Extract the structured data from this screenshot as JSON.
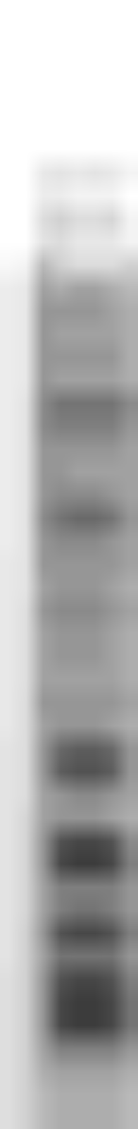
{
  "chart_data": {
    "type": "heatmap",
    "tick_labels": false,
    "zlim": [
      0,
      100
    ],
    "cells": [
      [
        0,
        0,
        0,
        0,
        0,
        0,
        0,
        0
      ],
      [
        0,
        0,
        0,
        0,
        0,
        0,
        0,
        0
      ],
      [
        0,
        0,
        0,
        0,
        0,
        0,
        0,
        0
      ],
      [
        0,
        0,
        0,
        0,
        0,
        0,
        0,
        0
      ],
      [
        0,
        0,
        0,
        0,
        0,
        0,
        0,
        0
      ],
      [
        0,
        0,
        0,
        0,
        0,
        0,
        0,
        0
      ],
      [
        0,
        0,
        0,
        0,
        0,
        0,
        0,
        0
      ],
      [
        0,
        0,
        10,
        12,
        10,
        12,
        10,
        5
      ],
      [
        0,
        0,
        8,
        8,
        5,
        5,
        5,
        0
      ],
      [
        0,
        0,
        15,
        20,
        15,
        15,
        18,
        5
      ],
      [
        0,
        0,
        12,
        15,
        10,
        10,
        10,
        5
      ],
      [
        3,
        5,
        30,
        20,
        15,
        15,
        15,
        20
      ],
      [
        8,
        10,
        40,
        35,
        40,
        40,
        35,
        30
      ],
      [
        8,
        10,
        45,
        45,
        45,
        45,
        40,
        35
      ],
      [
        8,
        10,
        45,
        40,
        40,
        40,
        40,
        35
      ],
      [
        8,
        10,
        45,
        45,
        45,
        45,
        45,
        35
      ],
      [
        8,
        10,
        45,
        40,
        40,
        40,
        40,
        35
      ],
      [
        8,
        12,
        50,
        60,
        60,
        60,
        60,
        50
      ],
      [
        8,
        12,
        50,
        55,
        55,
        55,
        55,
        45
      ],
      [
        8,
        12,
        45,
        45,
        45,
        45,
        45,
        40
      ],
      [
        8,
        12,
        45,
        45,
        40,
        40,
        40,
        40
      ],
      [
        8,
        12,
        45,
        50,
        50,
        50,
        45,
        40
      ],
      [
        8,
        12,
        50,
        60,
        65,
        65,
        60,
        45
      ],
      [
        8,
        12,
        45,
        50,
        50,
        50,
        45,
        40
      ],
      [
        10,
        12,
        45,
        45,
        45,
        45,
        45,
        40
      ],
      [
        10,
        12,
        40,
        45,
        45,
        45,
        40,
        35
      ],
      [
        10,
        14,
        45,
        50,
        50,
        50,
        45,
        40
      ],
      [
        10,
        14,
        40,
        45,
        45,
        45,
        40,
        35
      ],
      [
        10,
        14,
        40,
        45,
        45,
        45,
        40,
        35
      ],
      [
        10,
        14,
        40,
        40,
        40,
        40,
        40,
        35
      ],
      [
        10,
        15,
        45,
        45,
        45,
        45,
        45,
        40
      ],
      [
        10,
        15,
        40,
        45,
        45,
        45,
        40,
        35
      ],
      [
        12,
        15,
        45,
        65,
        70,
        70,
        65,
        45
      ],
      [
        12,
        15,
        45,
        70,
        75,
        75,
        70,
        45
      ],
      [
        12,
        15,
        40,
        45,
        50,
        50,
        45,
        40
      ],
      [
        12,
        18,
        40,
        45,
        45,
        45,
        40,
        35
      ],
      [
        12,
        18,
        45,
        75,
        80,
        80,
        75,
        50
      ],
      [
        12,
        18,
        45,
        80,
        85,
        85,
        80,
        55
      ],
      [
        12,
        18,
        40,
        55,
        55,
        55,
        55,
        45
      ],
      [
        12,
        18,
        40,
        55,
        60,
        60,
        55,
        45
      ],
      [
        12,
        20,
        45,
        75,
        80,
        80,
        75,
        55
      ],
      [
        12,
        20,
        40,
        60,
        60,
        60,
        60,
        45
      ],
      [
        14,
        20,
        45,
        75,
        80,
        80,
        75,
        55
      ],
      [
        14,
        20,
        45,
        80,
        85,
        85,
        80,
        60
      ],
      [
        14,
        20,
        45,
        80,
        85,
        85,
        80,
        60
      ],
      [
        14,
        20,
        40,
        55,
        55,
        55,
        55,
        45
      ],
      [
        14,
        20,
        35,
        40,
        40,
        40,
        40,
        35
      ],
      [
        14,
        20,
        30,
        35,
        35,
        35,
        35,
        30
      ],
      [
        14,
        20,
        30,
        35,
        35,
        35,
        35,
        30
      ]
    ]
  }
}
